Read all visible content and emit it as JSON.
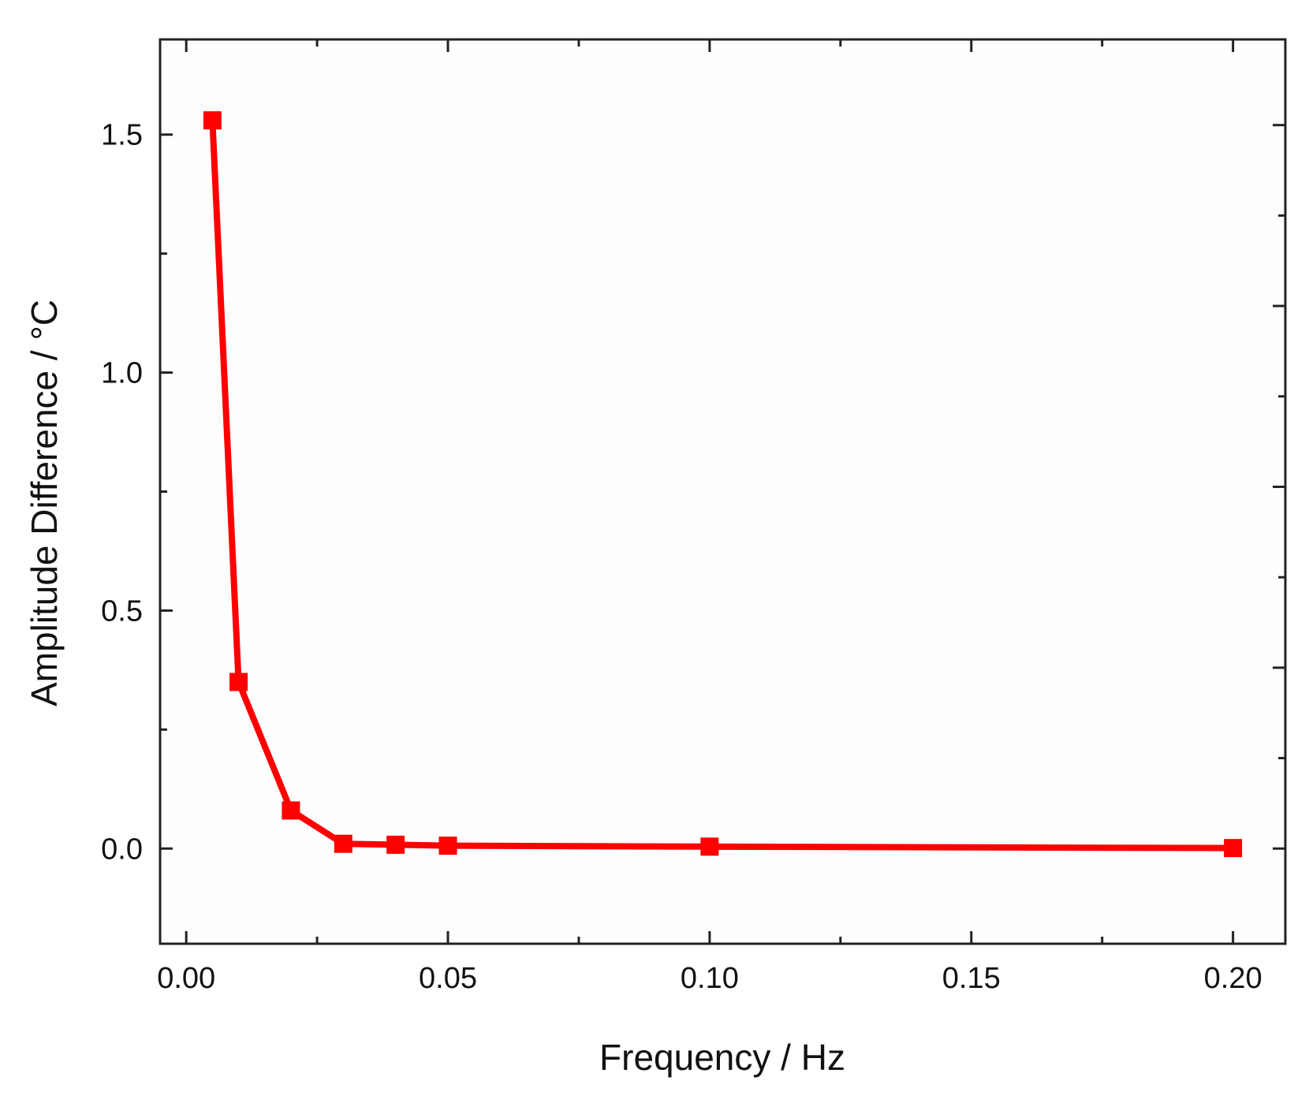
{
  "chart_data": {
    "type": "line",
    "xlabel": "Frequency / Hz",
    "ylabel": "Amplitude Difference / °C",
    "xlim": [
      -0.005,
      0.21
    ],
    "ylim": [
      -0.2,
      1.7
    ],
    "x_ticks": [
      0.0,
      0.05,
      0.1,
      0.15,
      0.2
    ],
    "x_tick_labels": [
      "0.00",
      "0.05",
      "0.10",
      "0.15",
      "0.20"
    ],
    "x_minor_ticks": [
      0.025,
      0.075,
      0.125,
      0.175
    ],
    "y_ticks": [
      0.0,
      0.5,
      1.0,
      1.5
    ],
    "y_tick_labels": [
      "0.0",
      "0.5",
      "1.0",
      "1.5"
    ],
    "y_minor_ticks": [
      -0.2,
      0.25,
      0.75,
      1.25
    ],
    "right_axis_ticks": [
      0.0,
      0.19,
      0.38,
      0.57,
      0.76,
      0.95,
      1.14,
      1.33,
      1.52
    ],
    "grid": false,
    "series": [
      {
        "color": "#ff0000",
        "marker": "square",
        "x": [
          0.005,
          0.01,
          0.02,
          0.03,
          0.04,
          0.05,
          0.1,
          0.2
        ],
        "y": [
          1.53,
          0.35,
          0.08,
          0.01,
          0.008,
          0.006,
          0.004,
          0.001
        ]
      }
    ]
  }
}
